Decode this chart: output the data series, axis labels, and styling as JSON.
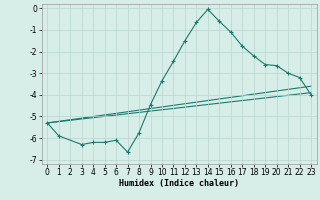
{
  "xlabel": "Humidex (Indice chaleur)",
  "background_color": "#d7ede8",
  "grid_color": "#b8d4ce",
  "line_color": "#1a7a6e",
  "xlim": [
    -0.5,
    23.5
  ],
  "ylim": [
    -7.2,
    0.2
  ],
  "xticks": [
    0,
    1,
    2,
    3,
    4,
    5,
    6,
    7,
    8,
    9,
    10,
    11,
    12,
    13,
    14,
    15,
    16,
    17,
    18,
    19,
    20,
    21,
    22,
    23
  ],
  "yticks": [
    0,
    -1,
    -2,
    -3,
    -4,
    -5,
    -6,
    -7
  ],
  "series_main": {
    "x": [
      0,
      1,
      3,
      4,
      5,
      6,
      7,
      8,
      9,
      10,
      11,
      12,
      13,
      14,
      15,
      16,
      17,
      18,
      19,
      20,
      21,
      22,
      23
    ],
    "y": [
      -5.3,
      -5.9,
      -6.3,
      -6.2,
      -6.2,
      -6.1,
      -6.65,
      -5.75,
      -4.45,
      -3.35,
      -2.45,
      -1.5,
      -0.65,
      -0.05,
      -0.6,
      -1.1,
      -1.75,
      -2.2,
      -2.6,
      -2.65,
      -3.0,
      -3.2,
      -4.0
    ]
  },
  "line1": {
    "x": [
      0,
      23
    ],
    "y": [
      -5.3,
      -3.9
    ]
  },
  "line2": {
    "x": [
      0,
      23
    ],
    "y": [
      -5.3,
      -3.6
    ]
  }
}
